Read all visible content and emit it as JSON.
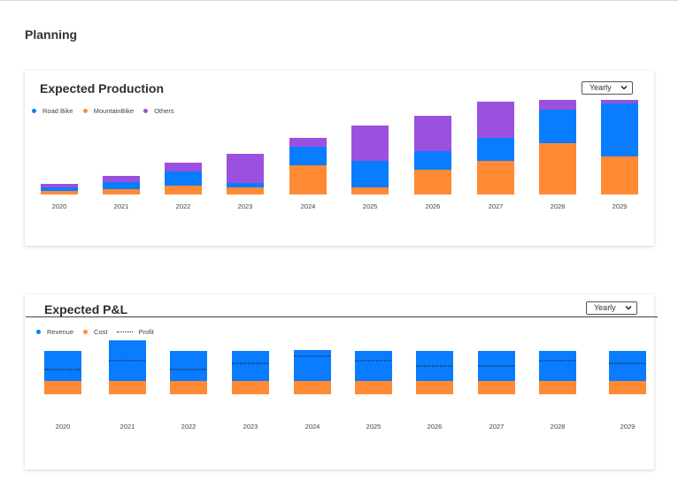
{
  "page": {
    "title": "Planning"
  },
  "production": {
    "title": "Expected Production",
    "period_select": "Yearly",
    "legend": [
      {
        "label": "Road Bike",
        "color": "#0a7cff"
      },
      {
        "label": "MountainBike",
        "color": "#ff8a33"
      },
      {
        "label": "Others",
        "color": "#9b51e0"
      }
    ]
  },
  "pnl": {
    "title": "Expected P&L",
    "period_select": "Yearly",
    "legend": [
      {
        "label": "Revenue",
        "color": "#0a7cff"
      },
      {
        "label": "Cost",
        "color": "#ff8a33"
      },
      {
        "label": "Profit",
        "color": "#222222"
      }
    ]
  },
  "chart_data": [
    {
      "type": "bar",
      "stacked": true,
      "title": "Expected Production",
      "categories": [
        "2020",
        "2021",
        "2022",
        "2023",
        "2024",
        "2025",
        "2026",
        "2027",
        "2028",
        "2029"
      ],
      "series": [
        {
          "name": "MountainBike",
          "color": "#ff8a33",
          "values": [
            4,
            6,
            10,
            8,
            33,
            8,
            28,
            38,
            58,
            43
          ]
        },
        {
          "name": "Road Bike",
          "color": "#0a7cff",
          "values": [
            4,
            8,
            16,
            5,
            21,
            30,
            21,
            26,
            38,
            60
          ]
        },
        {
          "name": "Others",
          "color": "#9b51e0",
          "values": [
            4,
            7,
            10,
            33,
            10,
            40,
            40,
            41,
            11,
            4
          ]
        }
      ],
      "ylim": [
        0,
        106
      ],
      "grid": false,
      "legend_position": "top-left"
    },
    {
      "type": "bar",
      "stacked": true,
      "title": "Expected P&L",
      "categories": [
        "2020",
        "2021",
        "2022",
        "2023",
        "2024",
        "2025",
        "2026",
        "2027",
        "2028",
        "2029"
      ],
      "series": [
        {
          "name": "Cost",
          "color": "#ff8a33",
          "values": [
            15,
            15,
            15,
            15,
            15,
            15,
            15,
            15,
            15,
            15
          ]
        },
        {
          "name": "Revenue",
          "color": "#0a7cff",
          "values": [
            34,
            46,
            34,
            34,
            35,
            34,
            34,
            34,
            34,
            34
          ]
        },
        {
          "name": "Profit",
          "type": "line",
          "style": "dotted",
          "color": "#222222",
          "values": [
            28,
            38,
            28,
            35,
            43,
            38,
            32,
            32,
            38,
            35
          ]
        }
      ],
      "ylim": [
        0,
        61
      ],
      "grid": false,
      "legend_position": "top-left"
    }
  ]
}
